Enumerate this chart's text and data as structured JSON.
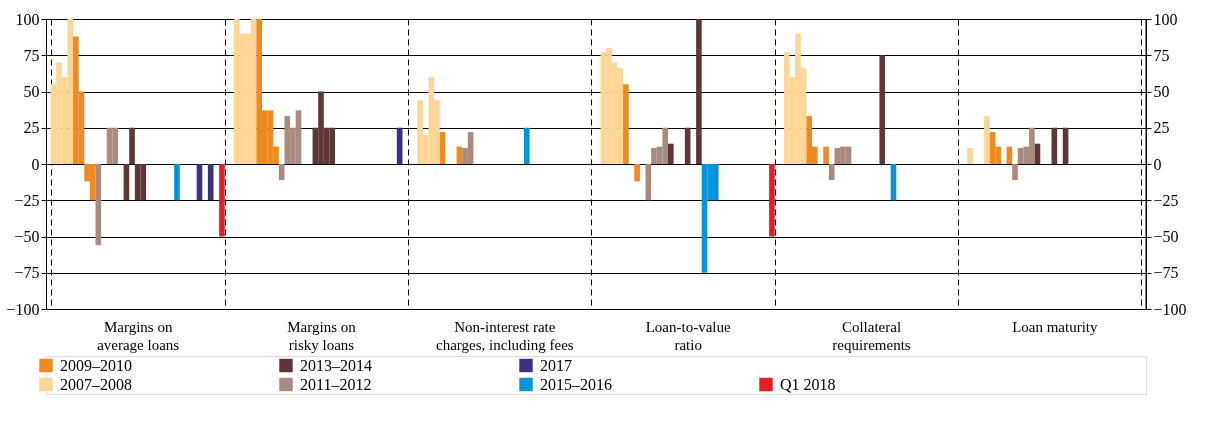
{
  "chart_data": {
    "type": "bar",
    "categories": [
      "Margins on\naverage loans",
      "Margins on\nrisky loans",
      "Non-interest rate\ncharges, including fees",
      "Loan-to-value\nratio",
      "Collateral\nrequirements",
      "Loan maturity"
    ],
    "series": [
      {
        "name": "2007–2008",
        "color": "#fdd594",
        "values": [
          55,
          100,
          44,
          77,
          77,
          11
        ]
      },
      {
        "color": "#fdd594",
        "values": [
          70,
          90,
          20,
          80,
          60,
          0
        ]
      },
      {
        "color": "#fdd594",
        "values": [
          60,
          90,
          60,
          70,
          90,
          0
        ]
      },
      {
        "color": "#fdd594",
        "values": [
          100,
          100,
          44,
          66,
          66,
          33
        ]
      },
      {
        "name": "2009–2010",
        "color": "#f08a1e",
        "values": [
          88,
          100,
          22,
          55,
          33,
          22
        ]
      },
      {
        "color": "#f08a1e",
        "values": [
          50,
          37,
          0,
          0,
          12,
          12
        ]
      },
      {
        "color": "#f08a1e",
        "values": [
          -12,
          37,
          0,
          -12,
          0,
          0
        ]
      },
      {
        "color": "#f08a1e",
        "values": [
          -25,
          12,
          12,
          0,
          12,
          12
        ]
      },
      {
        "name": "2011–2012",
        "color": "#a88a7e",
        "values": [
          -56,
          -11,
          11,
          -25,
          -11,
          -11
        ]
      },
      {
        "color": "#a88a7e",
        "values": [
          0,
          33,
          22,
          11,
          11,
          11
        ]
      },
      {
        "color": "#a88a7e",
        "values": [
          25,
          25,
          0,
          12,
          12,
          12
        ]
      },
      {
        "color": "#a88a7e",
        "values": [
          25,
          37,
          0,
          25,
          12,
          25
        ]
      },
      {
        "name": "2013–2014",
        "color": "#5e3638",
        "values": [
          0,
          0,
          0,
          14,
          0,
          14
        ]
      },
      {
        "color": "#5e3638",
        "values": [
          -25,
          0,
          0,
          0,
          0,
          0
        ]
      },
      {
        "color": "#5e3638",
        "values": [
          25,
          25,
          0,
          0,
          0,
          0
        ]
      },
      {
        "color": "#5e3638",
        "values": [
          -25,
          50,
          0,
          25,
          0,
          25
        ]
      },
      {
        "color": "#5e3638",
        "values": [
          -25,
          25,
          0,
          0,
          0,
          0
        ]
      },
      {
        "color": "#5e3638",
        "values": [
          0,
          25,
          0,
          100,
          75,
          25
        ]
      },
      {
        "name": "2015–2016",
        "color": "#0096dc",
        "values": [
          0,
          0,
          0,
          -75,
          0,
          0
        ]
      },
      {
        "color": "#0096dc",
        "values": [
          0,
          0,
          25,
          -25,
          -25,
          0
        ]
      },
      {
        "color": "#0096dc",
        "values": [
          0,
          0,
          0,
          -25,
          0,
          0
        ]
      },
      {
        "color": "#0096dc",
        "values": [
          0,
          0,
          0,
          0,
          0,
          0
        ]
      },
      {
        "color": "#0096dc",
        "values": [
          -25,
          0,
          0,
          0,
          0,
          0
        ]
      },
      {
        "color": "#0096dc",
        "values": [
          0,
          0,
          0,
          0,
          0,
          0
        ]
      },
      {
        "color": "#0096dc",
        "values": [
          0,
          0,
          0,
          0,
          0,
          0
        ]
      },
      {
        "color": "#0096dc",
        "values": [
          0,
          0,
          0,
          0,
          0,
          0
        ]
      },
      {
        "name": "2017",
        "color": "#3a3185",
        "values": [
          -25,
          0,
          0,
          0,
          0,
          0
        ]
      },
      {
        "color": "#3a3185",
        "values": [
          0,
          0,
          0,
          0,
          0,
          0
        ]
      },
      {
        "color": "#3a3185",
        "values": [
          -25,
          0,
          0,
          0,
          0,
          0
        ]
      },
      {
        "color": "#3a3185",
        "values": [
          0,
          25,
          0,
          0,
          0,
          0
        ]
      },
      {
        "name": "Q1 2018",
        "color": "#e31e24",
        "values": [
          -50,
          0,
          0,
          -50,
          0,
          0
        ]
      }
    ],
    "ylim": [
      -100,
      100
    ],
    "yticks": [
      -100,
      -75,
      -50,
      -25,
      0,
      25,
      50,
      75,
      100
    ],
    "y2lim": [
      -100,
      100
    ],
    "y2ticks": [
      -100,
      -75,
      -50,
      -25,
      0,
      25,
      50,
      75,
      100
    ],
    "grid": true,
    "legend": "bottom"
  }
}
